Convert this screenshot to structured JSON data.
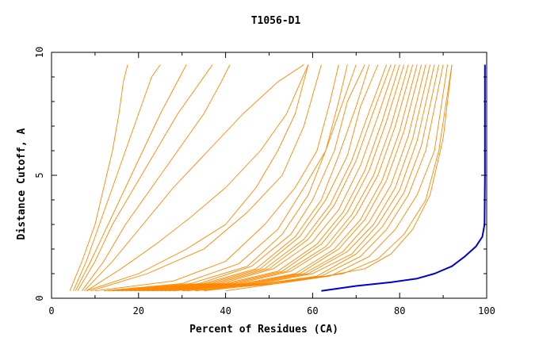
{
  "chart_data": {
    "type": "line",
    "title": "T1056-D1",
    "xlabel": "Percent of Residues (CA)",
    "ylabel": "Distance Cutoff, A",
    "xlim": [
      0,
      100
    ],
    "ylim": [
      0,
      10
    ],
    "x_ticks": [
      "0",
      "20",
      "40",
      "60",
      "80",
      "100"
    ],
    "y_ticks": [
      "0",
      "5",
      "10"
    ],
    "grid": false,
    "legend": "none",
    "colors": {
      "models": "#ff8800",
      "highlight": "#0000cc",
      "axes": "#000000"
    },
    "series": [
      {
        "color": "#ff8800",
        "x": [
          4.2,
          7,
          10,
          12,
          14,
          15.5,
          16.5,
          17.5
        ],
        "y": [
          0.3,
          1.5,
          3,
          4.5,
          6,
          7.5,
          8.8,
          9.5
        ]
      },
      {
        "color": "#ff8800",
        "x": [
          5,
          8,
          11,
          14,
          17,
          19,
          21,
          23,
          25
        ],
        "y": [
          0.3,
          1.5,
          3,
          4.5,
          6,
          7,
          8,
          9,
          9.5
        ]
      },
      {
        "color": "#ff8800",
        "x": [
          5.5,
          9,
          13,
          17,
          21,
          25,
          28,
          31
        ],
        "y": [
          0.3,
          1.5,
          3,
          4.5,
          6,
          7.5,
          8.5,
          9.5
        ]
      },
      {
        "color": "#ff8800",
        "x": [
          6,
          10,
          14,
          19,
          24,
          29,
          33,
          37
        ],
        "y": [
          0.3,
          1.5,
          3,
          4.5,
          6,
          7.5,
          8.5,
          9.5
        ]
      },
      {
        "color": "#ff8800",
        "x": [
          7,
          12,
          17,
          23,
          29,
          35,
          39,
          41
        ],
        "y": [
          0.3,
          1.5,
          3,
          4.5,
          6,
          7.5,
          8.8,
          9.5
        ]
      },
      {
        "color": "#ff8800",
        "x": [
          7.5,
          14,
          21,
          28,
          36,
          44,
          52,
          58
        ],
        "y": [
          0.3,
          1.5,
          3,
          4.5,
          6,
          7.5,
          8.8,
          9.5
        ]
      },
      {
        "color": "#ff8800",
        "x": [
          8,
          16,
          24,
          32,
          40,
          48,
          54,
          59
        ],
        "y": [
          0.3,
          1.2,
          2.2,
          3.3,
          4.5,
          6,
          7.5,
          9.5
        ]
      },
      {
        "color": "#ff8800",
        "x": [
          8,
          20,
          31,
          40,
          47,
          52,
          56,
          59
        ],
        "y": [
          0.3,
          1.0,
          2.0,
          3.0,
          4.5,
          6,
          7.5,
          9.5
        ]
      },
      {
        "color": "#ff8800",
        "x": [
          9,
          22,
          35,
          45,
          53,
          58,
          62
        ],
        "y": [
          0.3,
          1.0,
          2.0,
          3.5,
          5,
          7,
          9.5
        ]
      },
      {
        "color": "#ff8800",
        "x": [
          10,
          28,
          40,
          49,
          56,
          61,
          64,
          66
        ],
        "y": [
          0.3,
          0.7,
          1.5,
          3,
          4.5,
          6,
          8,
          9.5
        ]
      },
      {
        "color": "#ff8800",
        "x": [
          12,
          30,
          43,
          52,
          58,
          63,
          66,
          68
        ],
        "y": [
          0.3,
          0.6,
          1.4,
          2.8,
          4.5,
          6,
          8,
          9.5
        ]
      },
      {
        "color": "#ff8800",
        "x": [
          13,
          32,
          45,
          53,
          59,
          63,
          67,
          70
        ],
        "y": [
          0.3,
          0.6,
          1.3,
          2.6,
          4.2,
          6,
          8,
          9.5
        ]
      },
      {
        "color": "#ff8800",
        "x": [
          14,
          34,
          46,
          55,
          60,
          65,
          68,
          72
        ],
        "y": [
          0.3,
          0.6,
          1.3,
          2.6,
          4.0,
          6,
          8,
          9.5
        ]
      },
      {
        "color": "#ff8800",
        "x": [
          15,
          35,
          47,
          56,
          62,
          66,
          70,
          73
        ],
        "y": [
          0.3,
          0.6,
          1.2,
          2.5,
          4.0,
          5.8,
          7.8,
          9.5
        ]
      },
      {
        "color": "#ff8800",
        "x": [
          16,
          36,
          48,
          57,
          63,
          68,
          71,
          75
        ],
        "y": [
          0.3,
          0.6,
          1.2,
          2.5,
          4.0,
          5.8,
          7.8,
          9.5
        ]
      },
      {
        "color": "#ff8800",
        "x": [
          17,
          37,
          49,
          58,
          64,
          69,
          73,
          77
        ],
        "y": [
          0.3,
          0.6,
          1.2,
          2.4,
          3.8,
          5.6,
          7.6,
          9.5
        ]
      },
      {
        "color": "#ff8800",
        "x": [
          18,
          38,
          50,
          59,
          65,
          70,
          74,
          78
        ],
        "y": [
          0.3,
          0.6,
          1.2,
          2.4,
          3.8,
          5.6,
          7.6,
          9.5
        ]
      },
      {
        "color": "#ff8800",
        "x": [
          19,
          39,
          51,
          60,
          66,
          71,
          75,
          79
        ],
        "y": [
          0.3,
          0.6,
          1.2,
          2.3,
          3.6,
          5.4,
          7.4,
          9.5
        ]
      },
      {
        "color": "#ff8800",
        "x": [
          20,
          40,
          52,
          61,
          67,
          72,
          76,
          80
        ],
        "y": [
          0.3,
          0.6,
          1.1,
          2.2,
          3.5,
          5.2,
          7.2,
          9.5
        ]
      },
      {
        "color": "#ff8800",
        "x": [
          21,
          41,
          53,
          62,
          68,
          73,
          77,
          81
        ],
        "y": [
          0.3,
          0.6,
          1.1,
          2.2,
          3.5,
          5.2,
          7.2,
          9.5
        ]
      },
      {
        "color": "#ff8800",
        "x": [
          22,
          42,
          54,
          63,
          69,
          74,
          78,
          82
        ],
        "y": [
          0.3,
          0.6,
          1.1,
          2.1,
          3.4,
          5.0,
          7.0,
          9.5
        ]
      },
      {
        "color": "#ff8800",
        "x": [
          23,
          43,
          55,
          64,
          70,
          75,
          79,
          83
        ],
        "y": [
          0.3,
          0.6,
          1.1,
          2.1,
          3.4,
          5.0,
          7.0,
          9.5
        ]
      },
      {
        "color": "#ff8800",
        "x": [
          24,
          44,
          56,
          65,
          71,
          76,
          80,
          84
        ],
        "y": [
          0.3,
          0.6,
          1.0,
          2.0,
          3.2,
          4.8,
          6.8,
          9.5
        ]
      },
      {
        "color": "#ff8800",
        "x": [
          25,
          45,
          57,
          66,
          72,
          77,
          81,
          85
        ],
        "y": [
          0.3,
          0.6,
          1.0,
          2.0,
          3.2,
          4.8,
          6.8,
          9.5
        ]
      },
      {
        "color": "#ff8800",
        "x": [
          26,
          46,
          58,
          67,
          73,
          78,
          82,
          86
        ],
        "y": [
          0.3,
          0.6,
          1.0,
          1.9,
          3.1,
          4.6,
          6.6,
          9.5
        ]
      },
      {
        "color": "#ff8800",
        "x": [
          27,
          47,
          59,
          68,
          74,
          79,
          83,
          87
        ],
        "y": [
          0.3,
          0.6,
          1.0,
          1.9,
          3.0,
          4.5,
          6.5,
          9.5
        ]
      },
      {
        "color": "#ff8800",
        "x": [
          28,
          48,
          60,
          69,
          75,
          80,
          84,
          88
        ],
        "y": [
          0.3,
          0.6,
          1.0,
          1.8,
          3.0,
          4.4,
          6.4,
          9.5
        ]
      },
      {
        "color": "#ff8800",
        "x": [
          30,
          49,
          61,
          70,
          76,
          81,
          85,
          89
        ],
        "y": [
          0.3,
          0.6,
          0.9,
          1.8,
          2.9,
          4.3,
          6.2,
          9.5
        ]
      },
      {
        "color": "#ff8800",
        "x": [
          31,
          50,
          62,
          71,
          77,
          82,
          86,
          90
        ],
        "y": [
          0.3,
          0.6,
          0.9,
          1.7,
          2.8,
          4.2,
          6.0,
          9.5
        ]
      },
      {
        "color": "#ff8800",
        "x": [
          33,
          52,
          64,
          73,
          79,
          84,
          88,
          91
        ],
        "y": [
          0.3,
          0.6,
          0.9,
          1.7,
          2.8,
          4.2,
          6.0,
          9.5
        ]
      },
      {
        "color": "#ff8800",
        "x": [
          35,
          55,
          67,
          75,
          81,
          86,
          89,
          92
        ],
        "y": [
          0.3,
          0.7,
          1.0,
          1.6,
          2.6,
          4.0,
          6.0,
          9.5
        ]
      },
      {
        "color": "#ff8800",
        "x": [
          40,
          60,
          72,
          78,
          83,
          87,
          90,
          92
        ],
        "y": [
          0.3,
          0.8,
          1.2,
          1.8,
          2.8,
          4.2,
          6.5,
          9.5
        ]
      },
      {
        "color": "#0000cc",
        "x": [
          62,
          70,
          78,
          84,
          88,
          92,
          95,
          97.5,
          99,
          99.5,
          99.6,
          99.6
        ],
        "y": [
          0.3,
          0.5,
          0.65,
          0.8,
          1.0,
          1.3,
          1.7,
          2.1,
          2.5,
          3,
          5,
          9.5
        ]
      }
    ]
  }
}
